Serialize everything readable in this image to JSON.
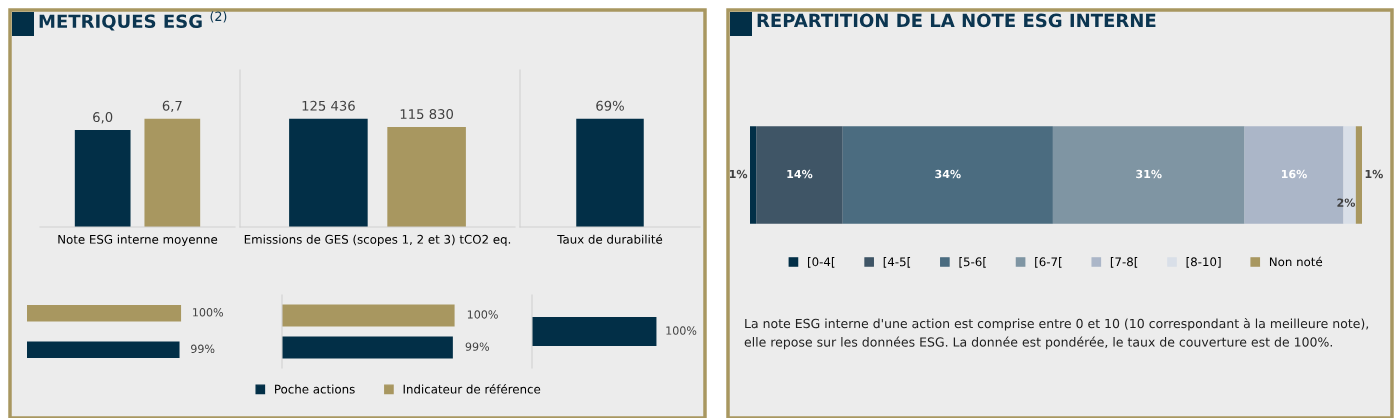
{
  "chart_data": [
    {
      "type": "bar",
      "title": "METRIQUES ESG $^{(2)}$",
      "xlabel": "Note ESG interne moyenne",
      "categories": [
        null,
        null
      ],
      "values": [
        6.0,
        6.7
      ],
      "colors": [
        "#022f47",
        "#a89760"
      ],
      "value_labels": [
        "6,0",
        "6,7"
      ]
    },
    {
      "type": "bar",
      "xlabel": "Emissions de GES (scopes 1, 2 et 3) tCO2 eq.",
      "categories": [
        null,
        null
      ],
      "values": [
        125436,
        115830
      ],
      "colors": [
        "#022f47",
        "#a89760"
      ],
      "value_labels": [
        "125 436",
        "115 830"
      ]
    },
    {
      "type": "bar",
      "xlabel": "Taux de durabilité",
      "categories": [
        null
      ],
      "values": [
        69
      ],
      "colors": [
        "#022f47"
      ],
      "value_labels": [
        "69%"
      ]
    },
    {
      "type": "bar",
      "orientation": "horizontal",
      "categories": [
        null,
        null
      ],
      "values": [
        100,
        99
      ],
      "colors": [
        "#a89760",
        "#022f47"
      ],
      "value_labels": [
        "100%",
        "99%"
      ]
    },
    {
      "type": "bar",
      "orientation": "horizontal",
      "categories": [
        null
      ],
      "legend": "bottom",
      "series": [
        {
          "name": "Indicateur de référence",
          "color": "#a89760",
          "values": [
            100
          ],
          "value_labels": [
            "100%"
          ]
        },
        {
          "name": "Poche actions",
          "color": "#022f47",
          "values": [
            99
          ],
          "value_labels": [
            "99%"
          ]
        }
      ]
    },
    {
      "type": "bar",
      "orientation": "horizontal",
      "categories": [
        null
      ],
      "values": [
        100
      ],
      "colors": [
        "#022f47"
      ],
      "value_labels": [
        "100%"
      ]
    },
    {
      "type": "bar",
      "orientation": "horizontal",
      "stacked": true,
      "title": "REPARTITION DE LA NOTE ESG INTERNE",
      "categories": [
        null
      ],
      "legend": "bottom",
      "annotations": [
        "La note ESG interne d'une action est comprise entre 0 et 10 (10 correspondant à la meilleure note), elle repose sur les données ESG. La donnée est pondérée, le taux de couverture est de 100%."
      ],
      "series": [
        {
          "name": "[0-4[",
          "color": "#022f47",
          "values": [
            1
          ],
          "value_labels": [
            "1%"
          ]
        },
        {
          "name": "[4-5[",
          "color": "#3f5566",
          "values": [
            14
          ],
          "value_labels": [
            "14%"
          ]
        },
        {
          "name": "[5-6[",
          "color": "#4b6c80",
          "values": [
            34
          ],
          "value_labels": [
            "34%"
          ]
        },
        {
          "name": "[6-7[",
          "color": "#7f95a3",
          "values": [
            31
          ],
          "value_labels": [
            "31%"
          ]
        },
        {
          "name": "[7-8[",
          "color": "#abb6c8",
          "values": [
            16
          ],
          "value_labels": [
            "16%"
          ]
        },
        {
          "name": "[8-10]",
          "color": "#d9dfe8",
          "values": [
            2
          ],
          "value_labels": [
            "2%"
          ]
        },
        {
          "name": "Non noté",
          "color": "#a89760",
          "values": [
            1
          ],
          "value_labels": [
            "1%"
          ]
        }
      ]
    }
  ]
}
